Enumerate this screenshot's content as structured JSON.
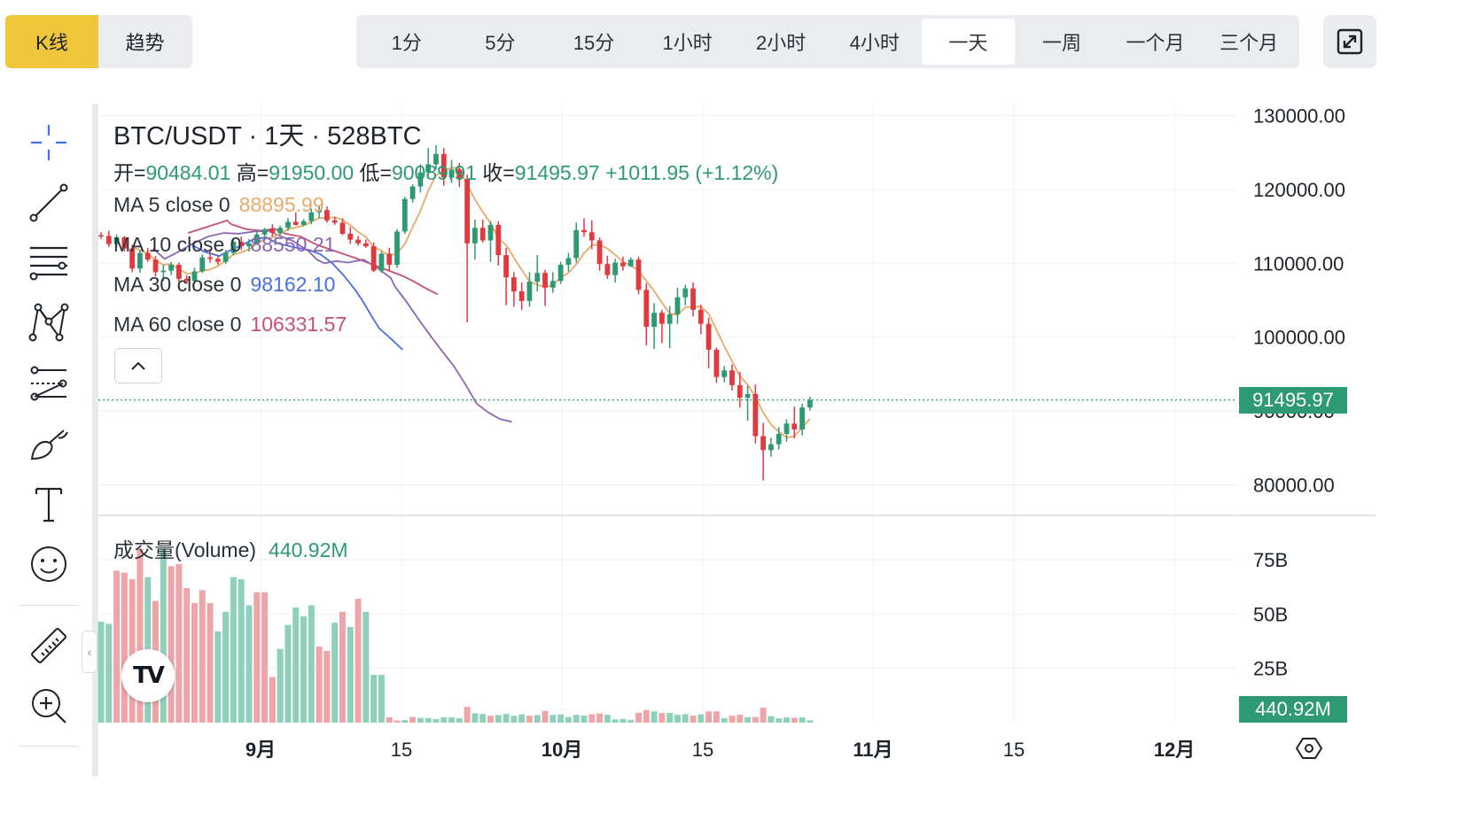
{
  "chart_type_tabs": [
    {
      "label": "K线",
      "active": true
    },
    {
      "label": "趋势",
      "active": false
    }
  ],
  "intervals": [
    {
      "label": "1分",
      "active": false
    },
    {
      "label": "5分",
      "active": false
    },
    {
      "label": "15分",
      "active": false
    },
    {
      "label": "1小时",
      "active": false
    },
    {
      "label": "2小时",
      "active": false
    },
    {
      "label": "4小时",
      "active": false
    },
    {
      "label": "一天",
      "active": true
    },
    {
      "label": "一周",
      "active": false
    },
    {
      "label": "一个月",
      "active": false
    },
    {
      "label": "三个月",
      "active": false
    }
  ],
  "tools": [
    "crosshair-icon",
    "trend-line-icon",
    "fib-retracement-icon",
    "pattern-icon",
    "forecast-icon",
    "brush-icon",
    "text-icon",
    "emoji-icon",
    "ruler-icon",
    "zoom-in-icon"
  ],
  "legend": {
    "title": "BTC/USDT · 1天 · 528BTC",
    "open_label": "开=",
    "open": "90484.01",
    "high_label": "高=",
    "high": "91950.00",
    "low_label": "低=",
    "low": "90089.91",
    "close_label": "收=",
    "close": "91495.97",
    "change": "+1011.95 (+1.12%)",
    "ma": [
      {
        "label": "MA 5 close 0",
        "value": "88895.99",
        "color": "#e9a96a"
      },
      {
        "label": "MA 10 close 0",
        "value": "88550.21",
        "color": "#8a66b5"
      },
      {
        "label": "MA 30 close 0",
        "value": "98162.10",
        "color": "#4a6fe0"
      },
      {
        "label": "MA 60 close 0",
        "value": "106331.57",
        "color": "#c94f76"
      }
    ],
    "volume_label": "成交量(Volume)",
    "volume_value": "440.92M"
  },
  "price_axis": [
    "130000.00",
    "120000.00",
    "110000.00",
    "100000.00",
    "90000.00",
    "80000.00"
  ],
  "volume_axis": [
    "75B",
    "50B",
    "25B"
  ],
  "last_price_tag": "91495.97",
  "last_volume_tag": "440.92M",
  "time_axis": [
    "9月",
    "15",
    "10月",
    "15",
    "11月",
    "15",
    "12月"
  ],
  "logo": "TV",
  "colors": {
    "up": "#2e9a73",
    "down": "#e0393e",
    "up_vol": "#8fd0bc",
    "down_vol": "#eea5a8",
    "accent": "#f0c63a"
  },
  "chart_data": {
    "type": "candlestick",
    "ylim": [
      78000,
      130000
    ],
    "candles": [
      [
        113800,
        114200,
        113300,
        113700
      ],
      [
        113700,
        114400,
        112200,
        112600
      ],
      [
        112600,
        113900,
        112100,
        113500
      ],
      [
        113500,
        113700,
        111600,
        112000
      ],
      [
        112000,
        112500,
        108800,
        109300
      ],
      [
        109300,
        111800,
        108700,
        111400
      ],
      [
        111400,
        112100,
        110200,
        110500
      ],
      [
        110500,
        111000,
        108200,
        108800
      ],
      [
        108800,
        109800,
        107600,
        109000
      ],
      [
        109000,
        110200,
        108400,
        109800
      ],
      [
        109800,
        110100,
        107500,
        107900
      ],
      [
        107900,
        108400,
        107200,
        107600
      ],
      [
        107600,
        109400,
        107300,
        108900
      ],
      [
        108900,
        111200,
        108700,
        110800
      ],
      [
        110800,
        111900,
        110100,
        110600
      ],
      [
        110600,
        111100,
        109800,
        110200
      ],
      [
        110200,
        111800,
        109900,
        111400
      ],
      [
        111400,
        113400,
        111100,
        112900
      ],
      [
        112900,
        113600,
        111800,
        112300
      ],
      [
        112300,
        113300,
        111600,
        112700
      ],
      [
        112700,
        114300,
        112500,
        113900
      ],
      [
        113900,
        114800,
        113200,
        114600
      ],
      [
        114600,
        115300,
        113600,
        114100
      ],
      [
        114100,
        115100,
        113800,
        114800
      ],
      [
        114800,
        116100,
        114400,
        115600
      ],
      [
        115600,
        116900,
        115100,
        115200
      ],
      [
        115200,
        116000,
        115000,
        115700
      ],
      [
        115700,
        117400,
        115300,
        116900
      ],
      [
        116900,
        117800,
        116100,
        117200
      ],
      [
        117200,
        117700,
        115500,
        115800
      ],
      [
        115800,
        116300,
        115200,
        115500
      ],
      [
        115500,
        116100,
        113800,
        114000
      ],
      [
        114000,
        114900,
        112600,
        113200
      ],
      [
        113200,
        113700,
        112400,
        112700
      ],
      [
        112700,
        113200,
        112100,
        112300
      ],
      [
        112300,
        112800,
        108800,
        109000
      ],
      [
        109000,
        111600,
        108700,
        111300
      ],
      [
        111300,
        112100,
        109000,
        109800
      ],
      [
        109800,
        114600,
        109400,
        114300
      ],
      [
        114300,
        119000,
        114000,
        118700
      ],
      [
        118700,
        120700,
        118200,
        120400
      ],
      [
        120400,
        123400,
        119600,
        122300
      ],
      [
        122300,
        125600,
        121800,
        123400
      ],
      [
        123400,
        126000,
        122700,
        124800
      ],
      [
        124800,
        125600,
        120500,
        121600
      ],
      [
        121600,
        124000,
        120900,
        122700
      ],
      [
        122700,
        123600,
        120300,
        121400
      ],
      [
        121400,
        122000,
        102000,
        112700
      ],
      [
        112700,
        115900,
        110500,
        114800
      ],
      [
        114800,
        115900,
        112800,
        113100
      ],
      [
        113100,
        115700,
        110200,
        115200
      ],
      [
        115200,
        115700,
        109700,
        111100
      ],
      [
        111100,
        112100,
        104300,
        108100
      ],
      [
        108100,
        108800,
        104100,
        106200
      ],
      [
        106200,
        107400,
        103700,
        104900
      ],
      [
        104900,
        108800,
        104100,
        107500
      ],
      [
        107500,
        111100,
        106200,
        108700
      ],
      [
        108700,
        109100,
        104200,
        106700
      ],
      [
        106700,
        108800,
        106000,
        107600
      ],
      [
        107600,
        110200,
        107200,
        109800
      ],
      [
        109800,
        111400,
        108900,
        110700
      ],
      [
        110700,
        115500,
        110100,
        114500
      ],
      [
        114500,
        116100,
        113600,
        114200
      ],
      [
        114200,
        115800,
        111900,
        113100
      ],
      [
        113100,
        113500,
        109000,
        109900
      ],
      [
        109900,
        111000,
        107900,
        108400
      ],
      [
        108400,
        110600,
        107400,
        110100
      ],
      [
        110100,
        110900,
        109000,
        109600
      ],
      [
        109600,
        110800,
        109500,
        110500
      ],
      [
        110500,
        110900,
        105800,
        106400
      ],
      [
        106400,
        107300,
        98900,
        101400
      ],
      [
        101400,
        104600,
        98400,
        103300
      ],
      [
        103300,
        103700,
        99200,
        101800
      ],
      [
        101800,
        104200,
        98500,
        103100
      ],
      [
        103100,
        106700,
        101800,
        105400
      ],
      [
        105400,
        107100,
        104300,
        106600
      ],
      [
        106600,
        107400,
        102800,
        103700
      ],
      [
        103700,
        104400,
        100400,
        101800
      ],
      [
        101800,
        102600,
        95800,
        98300
      ],
      [
        98300,
        98600,
        93800,
        94600
      ],
      [
        94600,
        96100,
        93900,
        95500
      ],
      [
        95500,
        96300,
        92800,
        93500
      ],
      [
        93500,
        95300,
        90500,
        91800
      ],
      [
        91800,
        93400,
        88700,
        92300
      ],
      [
        92300,
        93600,
        85600,
        86600
      ],
      [
        86600,
        88400,
        80600,
        84700
      ],
      [
        84700,
        86400,
        83800,
        85500
      ],
      [
        85500,
        87800,
        84800,
        86900
      ],
      [
        86900,
        88900,
        85800,
        88300
      ],
      [
        88300,
        90600,
        86300,
        87500
      ],
      [
        87500,
        91000,
        86700,
        90480
      ],
      [
        90480,
        91950,
        90090,
        91500
      ]
    ],
    "volumes_billion": [
      [
        46.5,
        1
      ],
      [
        45.5,
        1
      ],
      [
        70,
        0
      ],
      [
        69,
        0
      ],
      [
        66,
        0
      ],
      [
        80,
        0
      ],
      [
        67,
        1
      ],
      [
        56,
        0
      ],
      [
        80,
        1
      ],
      [
        72,
        0
      ],
      [
        73,
        0
      ],
      [
        62,
        0
      ],
      [
        55,
        0
      ],
      [
        61,
        0
      ],
      [
        55,
        0
      ],
      [
        42,
        1
      ],
      [
        51,
        1
      ],
      [
        67,
        1
      ],
      [
        66,
        1
      ],
      [
        54,
        1
      ],
      [
        60,
        0
      ],
      [
        60,
        0
      ],
      [
        21,
        0
      ],
      [
        34,
        1
      ],
      [
        45,
        1
      ],
      [
        53,
        1
      ],
      [
        49,
        1
      ],
      [
        54,
        1
      ],
      [
        35,
        0
      ],
      [
        33,
        0
      ],
      [
        46,
        1
      ],
      [
        51,
        0
      ],
      [
        44,
        1
      ],
      [
        57,
        0
      ],
      [
        51,
        1
      ],
      [
        22,
        1
      ],
      [
        22,
        1
      ],
      [
        2.5,
        0
      ],
      [
        1,
        0
      ],
      [
        1.2,
        1
      ],
      [
        2.6,
        0
      ],
      [
        2.2,
        1
      ],
      [
        2.1,
        1
      ],
      [
        1.6,
        1
      ],
      [
        2.5,
        1
      ],
      [
        2.4,
        1
      ],
      [
        2,
        1
      ],
      [
        7.3,
        0
      ],
      [
        4.3,
        1
      ],
      [
        4,
        1
      ],
      [
        3.2,
        0
      ],
      [
        3.5,
        1
      ],
      [
        4,
        1
      ],
      [
        3.1,
        1
      ],
      [
        3.8,
        1
      ],
      [
        3.2,
        0
      ],
      [
        3.5,
        1
      ],
      [
        5.4,
        0
      ],
      [
        3.6,
        1
      ],
      [
        3.8,
        1
      ],
      [
        2.6,
        1
      ],
      [
        3.6,
        1
      ],
      [
        3.3,
        1
      ],
      [
        3.9,
        0
      ],
      [
        4.2,
        0
      ],
      [
        3.6,
        1
      ],
      [
        1.5,
        1
      ],
      [
        1.7,
        1
      ],
      [
        1.3,
        1
      ],
      [
        4.6,
        0
      ],
      [
        5.8,
        0
      ],
      [
        5.2,
        1
      ],
      [
        4.4,
        0
      ],
      [
        4.5,
        1
      ],
      [
        3.6,
        1
      ],
      [
        3.9,
        1
      ],
      [
        3.2,
        0
      ],
      [
        3.8,
        1
      ],
      [
        5.2,
        0
      ],
      [
        5.2,
        0
      ],
      [
        2.1,
        1
      ],
      [
        3.2,
        0
      ],
      [
        3.6,
        0
      ],
      [
        2.5,
        1
      ],
      [
        2.6,
        0
      ],
      [
        6.9,
        0
      ],
      [
        3,
        1
      ],
      [
        2,
        1
      ],
      [
        2.4,
        1
      ],
      [
        2.2,
        0
      ],
      [
        2.4,
        1
      ],
      [
        1.1,
        1
      ]
    ],
    "ma_series": {
      "ma60": [
        [
          111500,
          114100
        ],
        [
          116500,
          115800
        ],
        [
          117000,
          115300
        ],
        [
          119000,
          114600
        ],
        [
          121000,
          114400
        ],
        [
          122500,
          114700
        ],
        [
          124000,
          114000
        ],
        [
          126000,
          113600
        ],
        [
          128000,
          112500
        ],
        [
          130500,
          111600
        ],
        [
          133000,
          110700
        ],
        [
          135500,
          109700
        ],
        [
          137500,
          108900
        ],
        [
          139000,
          108300
        ],
        [
          140500,
          107500
        ],
        [
          142000,
          106600
        ],
        [
          143500,
          105800
        ]
      ],
      "ma30": [
        [
          112000,
          112500
        ],
        [
          113500,
          111600
        ],
        [
          115500,
          111000
        ],
        [
          117000,
          111800
        ],
        [
          118500,
          112500
        ],
        [
          120000,
          113300
        ],
        [
          121500,
          113500
        ],
        [
          123000,
          112700
        ],
        [
          125000,
          112200
        ],
        [
          127000,
          111800
        ],
        [
          128500,
          111200
        ],
        [
          130000,
          110000
        ],
        [
          131500,
          108300
        ],
        [
          133000,
          106300
        ],
        [
          134000,
          104700
        ],
        [
          135000,
          102900
        ],
        [
          136000,
          101200
        ],
        [
          137500,
          99800
        ],
        [
          139000,
          98300
        ]
      ],
      "ma10": [
        [
          107000,
          112000
        ],
        [
          108500,
          110600
        ],
        [
          110000,
          111400
        ],
        [
          112000,
          112600
        ],
        [
          114000,
          113600
        ],
        [
          116000,
          114100
        ],
        [
          118000,
          114000
        ],
        [
          120000,
          114300
        ],
        [
          122000,
          114400
        ],
        [
          123000,
          113800
        ],
        [
          125000,
          113000
        ],
        [
          127000,
          111600
        ],
        [
          128000,
          110500
        ],
        [
          129000,
          110000
        ],
        [
          130500,
          110300
        ],
        [
          132000,
          110100
        ],
        [
          134000,
          110500
        ],
        [
          136000,
          109200
        ],
        [
          137500,
          108000
        ],
        [
          138000,
          106900
        ],
        [
          139500,
          104800
        ],
        [
          141000,
          102500
        ],
        [
          142500,
          100300
        ],
        [
          144000,
          98200
        ],
        [
          145500,
          96200
        ],
        [
          147000,
          93700
        ],
        [
          148500,
          91000
        ],
        [
          150000,
          89800
        ],
        [
          151500,
          88900
        ],
        [
          153000,
          88550
        ]
      ]
    }
  }
}
